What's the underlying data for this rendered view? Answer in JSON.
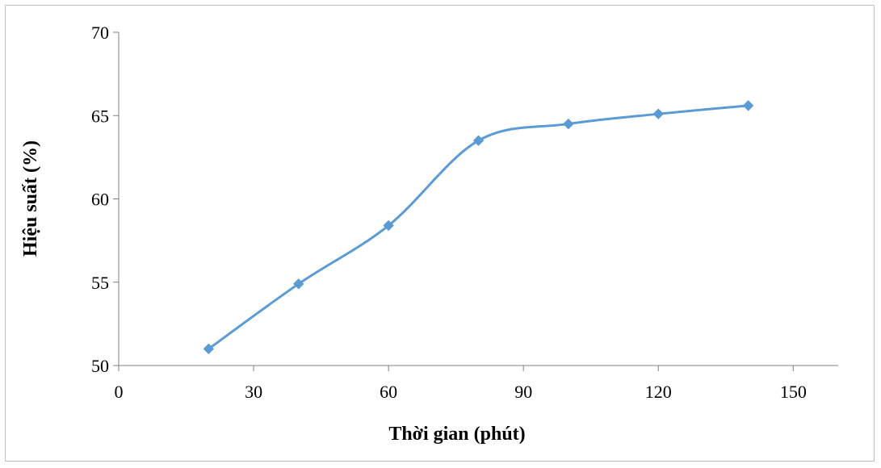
{
  "chart_data": {
    "type": "line",
    "title": "",
    "xlabel": "Thời gian (phút)",
    "ylabel": "Hiệu suất (%)",
    "xlim": [
      0,
      160
    ],
    "ylim": [
      50,
      70
    ],
    "xticks": [
      "0",
      "30",
      "60",
      "90",
      "120",
      "150"
    ],
    "yticks": [
      "50",
      "55",
      "60",
      "65",
      "70"
    ],
    "grid": false,
    "legend": "none",
    "smooth": true,
    "series": [
      {
        "x": [
          20,
          40,
          60,
          80,
          100,
          120,
          140
        ],
        "y": [
          51.0,
          54.9,
          58.4,
          63.5,
          64.5,
          65.1,
          65.6
        ],
        "color": "#5B9BD5"
      }
    ]
  }
}
